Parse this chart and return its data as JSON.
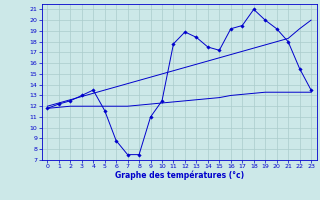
{
  "xlabel": "Graphe des températures (°c)",
  "bg_color": "#cce8e8",
  "line_color": "#0000cc",
  "grid_color": "#aacccc",
  "xlim": [
    -0.5,
    23.5
  ],
  "ylim": [
    7,
    21.5
  ],
  "xticks": [
    0,
    1,
    2,
    3,
    4,
    5,
    6,
    7,
    8,
    9,
    10,
    11,
    12,
    13,
    14,
    15,
    16,
    17,
    18,
    19,
    20,
    21,
    22,
    23
  ],
  "yticks": [
    7,
    8,
    9,
    10,
    11,
    12,
    13,
    14,
    15,
    16,
    17,
    18,
    19,
    20,
    21
  ],
  "hours": [
    0,
    1,
    2,
    3,
    4,
    5,
    6,
    7,
    8,
    9,
    10,
    11,
    12,
    13,
    14,
    15,
    16,
    17,
    18,
    19,
    20,
    21,
    22,
    23
  ],
  "temp_line": [
    11.8,
    12.2,
    12.5,
    13.0,
    13.5,
    11.6,
    8.8,
    7.5,
    7.5,
    11.0,
    12.5,
    17.8,
    18.9,
    18.4,
    17.5,
    17.2,
    19.2,
    19.5,
    21.0,
    20.0,
    19.2,
    18.0,
    15.5,
    13.5
  ],
  "trend_line": [
    12.0,
    12.3,
    12.6,
    12.9,
    13.2,
    13.5,
    13.8,
    14.1,
    14.4,
    14.7,
    15.0,
    15.3,
    15.6,
    15.9,
    16.2,
    16.5,
    16.8,
    17.1,
    17.4,
    17.7,
    18.0,
    18.3,
    19.2,
    20.0
  ],
  "min_line": [
    11.8,
    11.9,
    12.0,
    12.0,
    12.0,
    12.0,
    12.0,
    12.0,
    12.1,
    12.2,
    12.3,
    12.4,
    12.5,
    12.6,
    12.7,
    12.8,
    13.0,
    13.1,
    13.2,
    13.3,
    13.3,
    13.3,
    13.3,
    13.3
  ],
  "xlabel_fontsize": 5.5,
  "tick_fontsize": 4.5,
  "linewidth": 0.7,
  "marker_size": 1.8
}
